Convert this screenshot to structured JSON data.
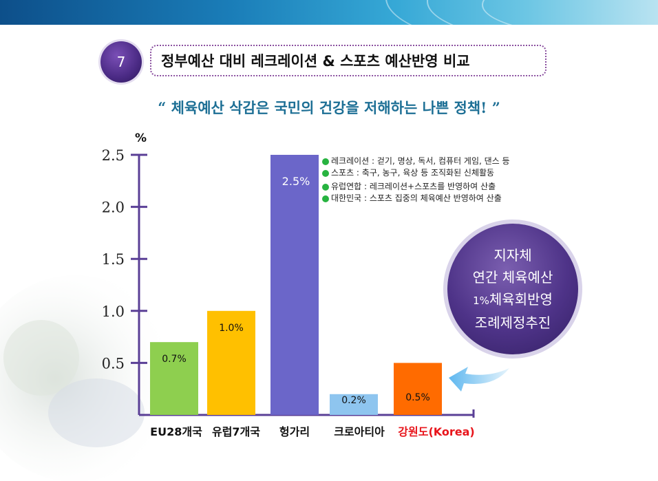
{
  "slide": {
    "section_number": "7",
    "title": "정부예산 대비 레크레이션 & 스포츠 예산반영 비교",
    "quote": "“ 체육예산 삭감은 국민의 건강을 저해하는 나쁜 정책! ”"
  },
  "legend_notes": [
    "레크레이션 : 걷기, 명상, 독서, 컴퓨터 게임, 댄스 등",
    "스포츠 : 축구, 농구, 육상 등 조직화된 신체활동",
    "유럽연합 : 레크레이션+스포츠를 반영하여 산출",
    "대한민국 : 스포츠 집중의 체육예산 반영하여 산출"
  ],
  "callout": {
    "line1": "지자체",
    "line2": "연간 체육예산",
    "line3_pct": "1%",
    "line3_rest": "체육회반영",
    "line4": "조례제정추진"
  },
  "colors": {
    "axis": "#5a3f96",
    "accent_text": "#e8141b",
    "quote": "#1d6f95"
  },
  "chart_data": {
    "type": "bar",
    "ylabel": "%",
    "ylim": [
      0,
      2.5
    ],
    "yticks": [
      0.5,
      1.0,
      1.5,
      2.0,
      2.5
    ],
    "ytick_labels": [
      "0.5",
      "1.0",
      "1.5",
      "2.0",
      "2.5"
    ],
    "categories": [
      "EU28개국",
      "유럽7개국",
      "헝가리",
      "크로아티아",
      "강원도(Korea)"
    ],
    "values": [
      0.7,
      1.0,
      2.5,
      0.2,
      0.5
    ],
    "value_labels": [
      "0.7%",
      "1.0%",
      "2.5%",
      "0.2%",
      "0.5%"
    ],
    "bar_colors": [
      "#8ecf4f",
      "#ffc000",
      "#6b66c9",
      "#8ec5ef",
      "#ff6b00"
    ],
    "category_colors": [
      "#111111",
      "#111111",
      "#111111",
      "#111111",
      "#e8141b"
    ],
    "grid": false,
    "legend": "none"
  }
}
